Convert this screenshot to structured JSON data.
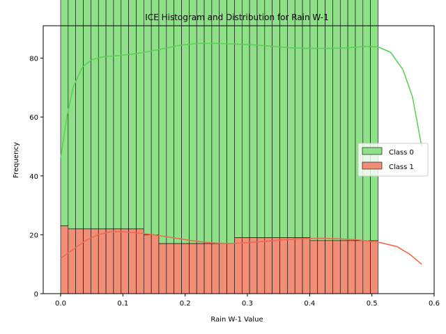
{
  "chart_data": {
    "type": "bar",
    "title": "ICE Histogram and Distribution for Rain W-1",
    "xlabel": "Rain W-1 Value",
    "ylabel": "Frequency",
    "xlim": [
      -0.028,
      0.6
    ],
    "ylim": [
      0,
      91
    ],
    "xticks": [
      0.0,
      0.1,
      0.2,
      0.3,
      0.4,
      0.5,
      0.6
    ],
    "xtick_labels": [
      "0.0",
      "0.1",
      "0.2",
      "0.3",
      "0.4",
      "0.5",
      "0.6"
    ],
    "yticks": [
      0,
      20,
      40,
      60,
      80
    ],
    "ytick_labels": [
      "0",
      "20",
      "40",
      "60",
      "80"
    ],
    "bin_start": 0.0,
    "bin_width": 0.01214,
    "legend_position": "center-right",
    "grid": false,
    "series": [
      {
        "name": "Class 0",
        "color": "#90e08a",
        "kde_color": "#5ecf57",
        "values": [
          81,
          82,
          82,
          82,
          82,
          82,
          82,
          82,
          82,
          82,
          82,
          84,
          84,
          87,
          87,
          87,
          87,
          87,
          87,
          87,
          87,
          87,
          87,
          85,
          85,
          85,
          85,
          85,
          85,
          85,
          85,
          85,
          85,
          86,
          86,
          86,
          86,
          86,
          86,
          86,
          86,
          86
        ],
        "kde": [
          [
            0.0,
            46
          ],
          [
            0.01,
            60
          ],
          [
            0.02,
            70
          ],
          [
            0.035,
            77
          ],
          [
            0.05,
            79.5
          ],
          [
            0.07,
            80.5
          ],
          [
            0.1,
            81
          ],
          [
            0.13,
            81.8
          ],
          [
            0.16,
            83
          ],
          [
            0.19,
            84.3
          ],
          [
            0.22,
            85
          ],
          [
            0.25,
            85
          ],
          [
            0.28,
            84.8
          ],
          [
            0.31,
            84.5
          ],
          [
            0.34,
            84
          ],
          [
            0.37,
            83.5
          ],
          [
            0.4,
            83.3
          ],
          [
            0.43,
            83.3
          ],
          [
            0.46,
            83.5
          ],
          [
            0.49,
            84
          ],
          [
            0.51,
            83.8
          ],
          [
            0.53,
            82
          ],
          [
            0.55,
            76
          ],
          [
            0.565,
            67
          ],
          [
            0.58,
            50
          ]
        ]
      },
      {
        "name": "Class 1",
        "color": "#f08e78",
        "kde_color": "#ef6a50",
        "values": [
          23,
          22,
          22,
          22,
          22,
          22,
          22,
          22,
          22,
          22,
          22,
          20,
          20,
          17,
          17,
          17,
          17,
          17,
          17,
          17,
          17,
          17,
          17,
          19,
          19,
          19,
          19,
          19,
          19,
          19,
          19,
          19,
          19,
          18,
          18,
          18,
          18,
          18,
          18,
          18,
          18,
          18
        ],
        "kde": [
          [
            0.0,
            12
          ],
          [
            0.02,
            15
          ],
          [
            0.04,
            18
          ],
          [
            0.06,
            20
          ],
          [
            0.08,
            21
          ],
          [
            0.1,
            21
          ],
          [
            0.12,
            20.7
          ],
          [
            0.15,
            20
          ],
          [
            0.18,
            19
          ],
          [
            0.21,
            18
          ],
          [
            0.24,
            17.3
          ],
          [
            0.27,
            17
          ],
          [
            0.3,
            17.3
          ],
          [
            0.33,
            17.8
          ],
          [
            0.36,
            18.3
          ],
          [
            0.39,
            18.7
          ],
          [
            0.42,
            18.8
          ],
          [
            0.45,
            18.6
          ],
          [
            0.48,
            18.2
          ],
          [
            0.51,
            17.5
          ],
          [
            0.54,
            16
          ],
          [
            0.56,
            13.5
          ],
          [
            0.58,
            10
          ]
        ]
      }
    ]
  }
}
